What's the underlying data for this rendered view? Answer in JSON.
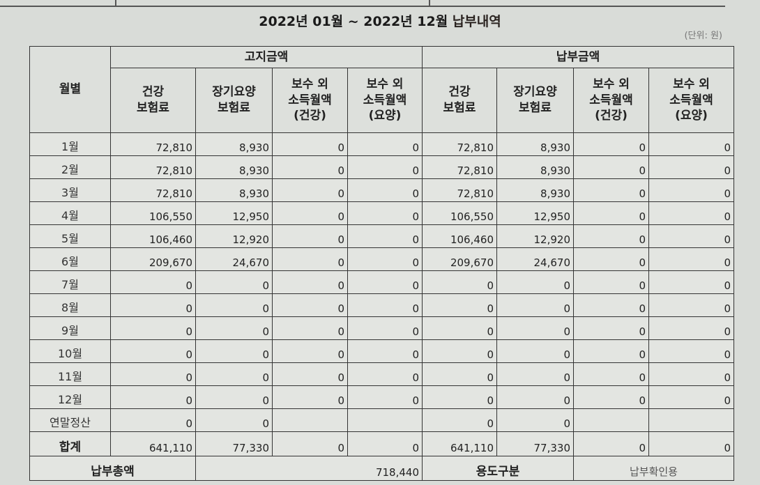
{
  "title": {
    "prefix": "2022년 01월 ~ 2022년 12월 ",
    "suffix": "납부내역"
  },
  "unit": "(단위: 원)",
  "headers": {
    "month": "월별",
    "notice_group": "고지금액",
    "paid_group": "납부금액",
    "columns": [
      "건강\n보험료",
      "장기요양\n보험료",
      "보수 외\n소득월액\n(건강)",
      "보수 외\n소득월액\n(요양)",
      "건강\n보험료",
      "장기요양\n보험료",
      "보수 외\n소득월액\n(건강)",
      "보수 외\n소득월액\n(요양)"
    ]
  },
  "rows": [
    {
      "month": "1월",
      "values": [
        "72,810",
        "8,930",
        "0",
        "0",
        "72,810",
        "8,930",
        "0",
        "0"
      ]
    },
    {
      "month": "2월",
      "values": [
        "72,810",
        "8,930",
        "0",
        "0",
        "72,810",
        "8,930",
        "0",
        "0"
      ]
    },
    {
      "month": "3월",
      "values": [
        "72,810",
        "8,930",
        "0",
        "0",
        "72,810",
        "8,930",
        "0",
        "0"
      ]
    },
    {
      "month": "4월",
      "values": [
        "106,550",
        "12,950",
        "0",
        "0",
        "106,550",
        "12,950",
        "0",
        "0"
      ]
    },
    {
      "month": "5월",
      "values": [
        "106,460",
        "12,920",
        "0",
        "0",
        "106,460",
        "12,920",
        "0",
        "0"
      ]
    },
    {
      "month": "6월",
      "values": [
        "209,670",
        "24,670",
        "0",
        "0",
        "209,670",
        "24,670",
        "0",
        "0"
      ]
    },
    {
      "month": "7월",
      "values": [
        "0",
        "0",
        "0",
        "0",
        "0",
        "0",
        "0",
        "0"
      ]
    },
    {
      "month": "8월",
      "values": [
        "0",
        "0",
        "0",
        "0",
        "0",
        "0",
        "0",
        "0"
      ]
    },
    {
      "month": "9월",
      "values": [
        "0",
        "0",
        "0",
        "0",
        "0",
        "0",
        "0",
        "0"
      ]
    },
    {
      "month": "10월",
      "values": [
        "0",
        "0",
        "0",
        "0",
        "0",
        "0",
        "0",
        "0"
      ]
    },
    {
      "month": "11월",
      "values": [
        "0",
        "0",
        "0",
        "0",
        "0",
        "0",
        "0",
        "0"
      ]
    },
    {
      "month": "12월",
      "values": [
        "0",
        "0",
        "0",
        "0",
        "0",
        "0",
        "0",
        "0"
      ]
    },
    {
      "month": "연말정산",
      "values": [
        "0",
        "0",
        "",
        "",
        "0",
        "0",
        "",
        ""
      ]
    }
  ],
  "total": {
    "label": "합계",
    "values": [
      "641,110",
      "77,330",
      "0",
      "0",
      "641,110",
      "77,330",
      "0",
      "0"
    ]
  },
  "footer": {
    "total_paid_label": "납부총액",
    "total_paid_value": "718,440",
    "purpose_label": "용도구분",
    "purpose_value": "납부확인용"
  }
}
